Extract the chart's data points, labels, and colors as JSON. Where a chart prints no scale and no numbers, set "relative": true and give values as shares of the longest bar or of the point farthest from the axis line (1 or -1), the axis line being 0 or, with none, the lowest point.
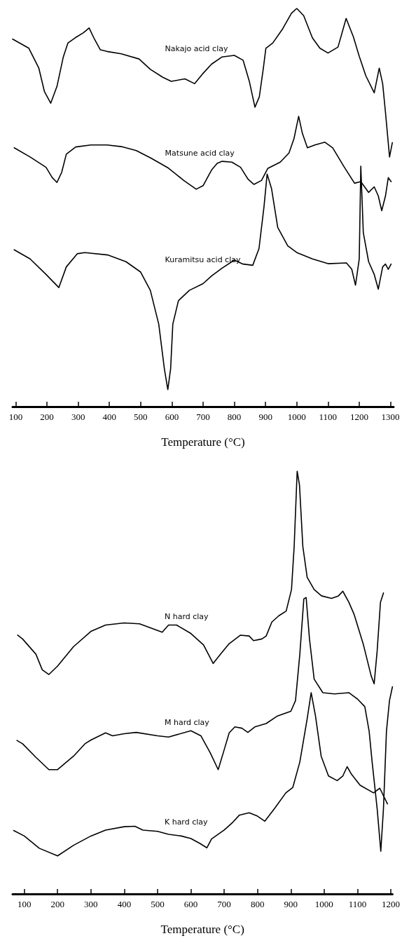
{
  "chart_data": [
    {
      "type": "line",
      "relative": true,
      "xlabel": "Temperature (°C)",
      "xlim": [
        90,
        1310
      ],
      "xticks": [
        100,
        200,
        300,
        400,
        500,
        600,
        700,
        800,
        900,
        1000,
        1100,
        1200,
        1300
      ],
      "grid": false,
      "legend": false,
      "marker": "none",
      "line_style": "solid",
      "series": [
        {
          "name": "Nakajo acid clay",
          "color": "#000000",
          "x": [
            90,
            142,
            174,
            192,
            212,
            232,
            252,
            267,
            290,
            317,
            335,
            352,
            371,
            392,
            438,
            495,
            531,
            571,
            598,
            642,
            673,
            700,
            727,
            760,
            800,
            828,
            848,
            866,
            880,
            893,
            901,
            923,
            955,
            983,
            1000,
            1022,
            1050,
            1074,
            1100,
            1132,
            1158,
            1181,
            1200,
            1221,
            1248,
            1264,
            1275,
            1284,
            1297,
            1306
          ],
          "values": [
            0.923,
            0.9,
            0.85,
            0.791,
            0.762,
            0.804,
            0.877,
            0.913,
            0.926,
            0.939,
            0.951,
            0.923,
            0.896,
            0.892,
            0.886,
            0.873,
            0.847,
            0.827,
            0.817,
            0.823,
            0.811,
            0.837,
            0.86,
            0.878,
            0.882,
            0.87,
            0.817,
            0.752,
            0.778,
            0.85,
            0.9,
            0.913,
            0.949,
            0.988,
            1.0,
            0.982,
            0.926,
            0.9,
            0.888,
            0.903,
            0.975,
            0.929,
            0.88,
            0.831,
            0.788,
            0.85,
            0.811,
            0.739,
            0.627,
            0.663
          ]
        },
        {
          "name": "Matsune acid clay",
          "color": "#000000",
          "x": [
            95,
            146,
            197,
            217,
            232,
            247,
            262,
            292,
            341,
            392,
            438,
            486,
            533,
            589,
            638,
            678,
            700,
            727,
            745,
            761,
            792,
            820,
            844,
            863,
            887,
            907,
            947,
            975,
            991,
            1006,
            1018,
            1034,
            1058,
            1090,
            1115,
            1150,
            1185,
            1205,
            1230,
            1248,
            1261,
            1272,
            1284,
            1293,
            1302
          ],
          "values": [
            0.65,
            0.627,
            0.601,
            0.575,
            0.563,
            0.588,
            0.634,
            0.652,
            0.657,
            0.657,
            0.653,
            0.643,
            0.624,
            0.599,
            0.568,
            0.546,
            0.555,
            0.594,
            0.611,
            0.616,
            0.614,
            0.601,
            0.571,
            0.558,
            0.568,
            0.598,
            0.614,
            0.637,
            0.673,
            0.729,
            0.686,
            0.65,
            0.657,
            0.664,
            0.65,
            0.604,
            0.561,
            0.565,
            0.538,
            0.552,
            0.529,
            0.492,
            0.529,
            0.575,
            0.565
          ]
        },
        {
          "name": "Kuramitsu acid clay",
          "color": "#000000",
          "x": [
            95,
            146,
            197,
            238,
            262,
            297,
            321,
            394,
            453,
            500,
            531,
            558,
            576,
            587,
            596,
            603,
            621,
            656,
            700,
            727,
            761,
            800,
            828,
            859,
            879,
            895,
            905,
            919,
            939,
            971,
            1000,
            1050,
            1100,
            1159,
            1176,
            1188,
            1200,
            1205,
            1213,
            1230,
            1248,
            1261,
            1275,
            1284,
            1293,
            1302
          ],
          "values": [
            0.394,
            0.371,
            0.332,
            0.299,
            0.351,
            0.384,
            0.387,
            0.381,
            0.364,
            0.338,
            0.292,
            0.207,
            0.095,
            0.043,
            0.095,
            0.207,
            0.266,
            0.292,
            0.309,
            0.328,
            0.348,
            0.368,
            0.358,
            0.355,
            0.397,
            0.502,
            0.584,
            0.548,
            0.45,
            0.404,
            0.387,
            0.371,
            0.359,
            0.361,
            0.345,
            0.305,
            0.371,
            0.604,
            0.437,
            0.364,
            0.332,
            0.295,
            0.351,
            0.358,
            0.345,
            0.358
          ]
        }
      ]
    },
    {
      "type": "line",
      "relative": true,
      "xlabel": "Temperature (°C)",
      "xlim": [
        65,
        1205
      ],
      "xticks": [
        100,
        200,
        300,
        400,
        500,
        600,
        700,
        800,
        900,
        1000,
        1100,
        1200
      ],
      "grid": false,
      "legend": false,
      "marker": "none",
      "line_style": "solid",
      "series": [
        {
          "name": "N hard clay",
          "color": "#000000",
          "x": [
            80,
            95,
            135,
            154,
            174,
            200,
            248,
            300,
            344,
            400,
            446,
            500,
            514,
            533,
            557,
            600,
            638,
            667,
            689,
            715,
            749,
            775,
            788,
            813,
            826,
            843,
            864,
            886,
            902,
            910,
            919,
            926,
            936,
            949,
            970,
            992,
            1022,
            1043,
            1056,
            1074,
            1090,
            1118,
            1141,
            1150,
            1159,
            1169,
            1178
          ],
          "values": [
            0.612,
            0.603,
            0.567,
            0.53,
            0.519,
            0.539,
            0.585,
            0.621,
            0.636,
            0.641,
            0.639,
            0.623,
            0.619,
            0.636,
            0.636,
            0.616,
            0.589,
            0.545,
            0.567,
            0.592,
            0.612,
            0.61,
            0.599,
            0.603,
            0.61,
            0.643,
            0.658,
            0.669,
            0.72,
            0.822,
            1.0,
            0.967,
            0.822,
            0.749,
            0.72,
            0.705,
            0.699,
            0.705,
            0.716,
            0.69,
            0.661,
            0.589,
            0.516,
            0.497,
            0.574,
            0.69,
            0.712
          ]
        },
        {
          "name": "M hard clay",
          "color": "#000000",
          "x": [
            78,
            95,
            135,
            174,
            200,
            248,
            282,
            300,
            344,
            365,
            400,
            436,
            500,
            533,
            600,
            630,
            658,
            682,
            700,
            715,
            732,
            753,
            771,
            792,
            826,
            860,
            900,
            914,
            927,
            939,
            946,
            956,
            970,
            996,
            1031,
            1074,
            1100,
            1122,
            1135,
            1144,
            1159,
            1170,
            1178,
            1187,
            1196,
            1205
          ],
          "values": [
            0.363,
            0.355,
            0.323,
            0.294,
            0.294,
            0.326,
            0.355,
            0.364,
            0.381,
            0.374,
            0.379,
            0.382,
            0.374,
            0.371,
            0.386,
            0.374,
            0.334,
            0.294,
            0.341,
            0.381,
            0.395,
            0.392,
            0.382,
            0.395,
            0.403,
            0.421,
            0.432,
            0.457,
            0.567,
            0.698,
            0.701,
            0.603,
            0.508,
            0.476,
            0.473,
            0.476,
            0.461,
            0.443,
            0.385,
            0.312,
            0.202,
            0.101,
            0.202,
            0.385,
            0.457,
            0.49
          ]
        },
        {
          "name": "K hard clay",
          "color": "#000000",
          "x": [
            68,
            100,
            145,
            200,
            248,
            300,
            344,
            400,
            432,
            456,
            500,
            533,
            571,
            600,
            628,
            648,
            662,
            700,
            724,
            745,
            775,
            800,
            822,
            851,
            885,
            906,
            927,
            949,
            961,
            974,
            991,
            1013,
            1039,
            1056,
            1069,
            1082,
            1108,
            1148,
            1167,
            1190
          ],
          "values": [
            0.15,
            0.137,
            0.108,
            0.09,
            0.115,
            0.137,
            0.151,
            0.159,
            0.16,
            0.151,
            0.148,
            0.141,
            0.137,
            0.131,
            0.119,
            0.109,
            0.13,
            0.151,
            0.168,
            0.186,
            0.192,
            0.184,
            0.172,
            0.202,
            0.239,
            0.252,
            0.312,
            0.414,
            0.476,
            0.421,
            0.326,
            0.279,
            0.268,
            0.279,
            0.301,
            0.283,
            0.257,
            0.239,
            0.25,
            0.213
          ]
        }
      ]
    }
  ]
}
